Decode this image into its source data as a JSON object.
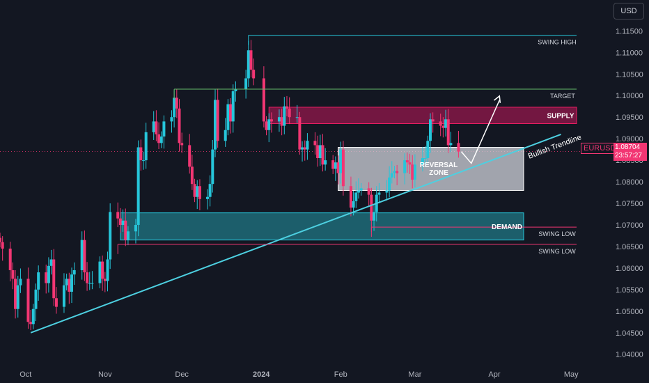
{
  "chart_data": {
    "type": "candlestick",
    "symbol": "EURUSD",
    "currency": "USD",
    "last_price": "1.08704",
    "countdown": "23:57:27",
    "y_ticks": [
      "1.11500",
      "1.11000",
      "1.10500",
      "1.10000",
      "1.09500",
      "1.09000",
      "1.08500",
      "1.08000",
      "1.07500",
      "1.07000",
      "1.06500",
      "1.06000",
      "1.05500",
      "1.05000",
      "1.04500",
      "1.04000"
    ],
    "y_tick_values": [
      1.115,
      1.11,
      1.105,
      1.1,
      1.095,
      1.09,
      1.085,
      1.08,
      1.075,
      1.07,
      1.065,
      1.06,
      1.055,
      1.05,
      1.045,
      1.04
    ],
    "x_ticks": [
      {
        "label": "Oct",
        "date": "2023-10-01",
        "bold": false
      },
      {
        "label": "Nov",
        "date": "2023-11-01",
        "bold": false
      },
      {
        "label": "Dec",
        "date": "2023-12-01",
        "bold": false
      },
      {
        "label": "2024",
        "date": "2024-01-01",
        "bold": true
      },
      {
        "label": "Feb",
        "date": "2024-02-01",
        "bold": false
      },
      {
        "label": "Mar",
        "date": "2024-03-01",
        "bold": false
      },
      {
        "label": "Apr",
        "date": "2024-04-01",
        "bold": false
      },
      {
        "label": "May",
        "date": "2024-05-01",
        "bold": false
      }
    ],
    "x_range": [
      "2023-09-21",
      "2024-05-05"
    ],
    "ylim": [
      1.0385,
      1.117
    ],
    "closes": [
      [
        "2023-09-21",
        1.066
      ],
      [
        "2023-09-22",
        1.0645
      ],
      [
        "2023-09-25",
        1.0595
      ],
      [
        "2023-09-26",
        1.0575
      ],
      [
        "2023-09-27",
        1.0505
      ],
      [
        "2023-09-28",
        1.056
      ],
      [
        "2023-09-29",
        1.0575
      ],
      [
        "2023-10-02",
        1.0475
      ],
      [
        "2023-10-03",
        1.047
      ],
      [
        "2023-10-04",
        1.0505
      ],
      [
        "2023-10-05",
        1.055
      ],
      [
        "2023-10-06",
        1.059
      ],
      [
        "2023-10-09",
        1.0565
      ],
      [
        "2023-10-10",
        1.0605
      ],
      [
        "2023-10-11",
        1.062
      ],
      [
        "2023-10-12",
        1.053
      ],
      [
        "2023-10-13",
        1.051
      ],
      [
        "2023-10-16",
        1.056
      ],
      [
        "2023-10-17",
        1.0575
      ],
      [
        "2023-10-18",
        1.0545
      ],
      [
        "2023-10-19",
        1.0585
      ],
      [
        "2023-10-20",
        1.0595
      ],
      [
        "2023-10-23",
        1.0665
      ],
      [
        "2023-10-24",
        1.059
      ],
      [
        "2023-10-25",
        1.0565
      ],
      [
        "2023-10-26",
        1.0565
      ],
      [
        "2023-10-27",
        1.0565
      ],
      [
        "2023-10-30",
        1.0615
      ],
      [
        "2023-10-31",
        1.0575
      ],
      [
        "2023-11-01",
        1.057
      ],
      [
        "2023-11-02",
        1.062
      ],
      [
        "2023-11-03",
        1.073
      ],
      [
        "2023-11-06",
        1.0715
      ],
      [
        "2023-11-07",
        1.07
      ],
      [
        "2023-11-08",
        1.071
      ],
      [
        "2023-11-09",
        1.0665
      ],
      [
        "2023-11-10",
        1.0685
      ],
      [
        "2023-11-13",
        1.07
      ],
      [
        "2023-11-14",
        1.088
      ],
      [
        "2023-11-15",
        1.085
      ],
      [
        "2023-11-16",
        1.085
      ],
      [
        "2023-11-17",
        1.0915
      ],
      [
        "2023-11-20",
        1.094
      ],
      [
        "2023-11-21",
        1.091
      ],
      [
        "2023-11-22",
        1.089
      ],
      [
        "2023-11-23",
        1.0905
      ],
      [
        "2023-11-24",
        1.094
      ],
      [
        "2023-11-27",
        1.095
      ],
      [
        "2023-11-28",
        1.0995
      ],
      [
        "2023-11-29",
        1.097
      ],
      [
        "2023-11-30",
        1.089
      ],
      [
        "2023-12-01",
        1.0885
      ],
      [
        "2023-12-04",
        1.0835
      ],
      [
        "2023-12-05",
        1.0795
      ],
      [
        "2023-12-06",
        1.0765
      ],
      [
        "2023-12-07",
        1.079
      ],
      [
        "2023-12-08",
        1.076
      ],
      [
        "2023-12-11",
        1.0765
      ],
      [
        "2023-12-12",
        1.0795
      ],
      [
        "2023-12-13",
        1.0875
      ],
      [
        "2023-12-14",
        1.099
      ],
      [
        "2023-12-15",
        1.0895
      ],
      [
        "2023-12-18",
        1.092
      ],
      [
        "2023-12-19",
        1.098
      ],
      [
        "2023-12-20",
        1.094
      ],
      [
        "2023-12-21",
        1.101
      ],
      [
        "2023-12-22",
        1.1015
      ],
      [
        "2023-12-26",
        1.104
      ],
      [
        "2023-12-27",
        1.1105
      ],
      [
        "2023-12-28",
        1.106
      ],
      [
        "2023-12-29",
        1.104
      ],
      [
        "2024-01-02",
        1.094
      ],
      [
        "2024-01-03",
        1.092
      ],
      [
        "2024-01-04",
        1.0945
      ],
      [
        "2024-01-05",
        1.094
      ],
      [
        "2024-01-08",
        1.095
      ],
      [
        "2024-01-09",
        1.093
      ],
      [
        "2024-01-10",
        1.0975
      ],
      [
        "2024-01-11",
        1.097
      ],
      [
        "2024-01-12",
        1.095
      ],
      [
        "2024-01-15",
        1.095
      ],
      [
        "2024-01-16",
        1.0875
      ],
      [
        "2024-01-17",
        1.088
      ],
      [
        "2024-01-18",
        1.0875
      ],
      [
        "2024-01-19",
        1.0895
      ],
      [
        "2024-01-22",
        1.0885
      ],
      [
        "2024-01-23",
        1.0855
      ],
      [
        "2024-01-24",
        1.0885
      ],
      [
        "2024-01-25",
        1.084
      ],
      [
        "2024-01-26",
        1.085
      ],
      [
        "2024-01-29",
        1.083
      ],
      [
        "2024-01-30",
        1.0845
      ],
      [
        "2024-01-31",
        1.082
      ],
      [
        "2024-02-01",
        1.0875
      ],
      [
        "2024-02-02",
        1.079
      ],
      [
        "2024-02-05",
        1.074
      ],
      [
        "2024-02-06",
        1.0755
      ],
      [
        "2024-02-07",
        1.0775
      ],
      [
        "2024-02-08",
        1.078
      ],
      [
        "2024-02-09",
        1.0785
      ],
      [
        "2024-02-12",
        1.077
      ],
      [
        "2024-02-13",
        1.071
      ],
      [
        "2024-02-14",
        1.073
      ],
      [
        "2024-02-15",
        1.077
      ],
      [
        "2024-02-16",
        1.0775
      ],
      [
        "2024-02-19",
        1.078
      ],
      [
        "2024-02-20",
        1.081
      ],
      [
        "2024-02-21",
        1.082
      ],
      [
        "2024-02-22",
        1.0825
      ],
      [
        "2024-02-23",
        1.082
      ],
      [
        "2024-02-26",
        1.085
      ],
      [
        "2024-02-27",
        1.0845
      ],
      [
        "2024-02-28",
        1.084
      ],
      [
        "2024-02-29",
        1.0805
      ],
      [
        "2024-03-01",
        1.084
      ],
      [
        "2024-03-04",
        1.0855
      ],
      [
        "2024-03-05",
        1.0855
      ],
      [
        "2024-03-06",
        1.0895
      ],
      [
        "2024-03-07",
        1.0945
      ],
      [
        "2024-03-08",
        1.094
      ],
      [
        "2024-03-11",
        1.093
      ],
      [
        "2024-03-12",
        1.0925
      ],
      [
        "2024-03-13",
        1.0945
      ],
      [
        "2024-03-14",
        1.0885
      ],
      [
        "2024-03-15",
        1.089
      ],
      [
        "2024-03-18",
        1.087
      ]
    ],
    "annotations": {
      "swing_high": {
        "label": "SWING HIGH",
        "price": 1.114,
        "start": "2023-12-27"
      },
      "target": {
        "label": "TARGET",
        "price": 1.1015,
        "start": "2023-11-28"
      },
      "supply": {
        "label": "SUPPLY",
        "top": 1.0973,
        "bottom": 1.0935,
        "start": "2024-01-04"
      },
      "reversal_zone": {
        "label_line1": "REVERSAL",
        "label_line2": "ZONE",
        "top": 1.088,
        "bottom": 1.078,
        "start": "2024-01-31"
      },
      "demand": {
        "label": "DEMAND",
        "top": 1.0728,
        "bottom": 1.0665,
        "start": "2023-11-07"
      },
      "swing_low_1": {
        "label": "SWING LOW",
        "price": 1.0695,
        "start": "2024-02-13"
      },
      "swing_low_2": {
        "label": "SWING LOW",
        "price": 1.0655,
        "start": "2023-11-06"
      },
      "trendline": {
        "label": "Bullish Trendline",
        "start": [
          "2023-10-03",
          1.045
        ],
        "end": [
          "2024-04-27",
          1.091
        ]
      },
      "projection": [
        [
          "2024-03-23",
          1.0843
        ],
        [
          "2024-04-03",
          1.0999
        ]
      ]
    },
    "colors": {
      "up": "#26c6da",
      "down": "#f23673",
      "trendline": "#4dd0e1",
      "target_line": "#66bb6a",
      "swing_high": "#26c6da",
      "swing_low": "#f23673"
    }
  }
}
